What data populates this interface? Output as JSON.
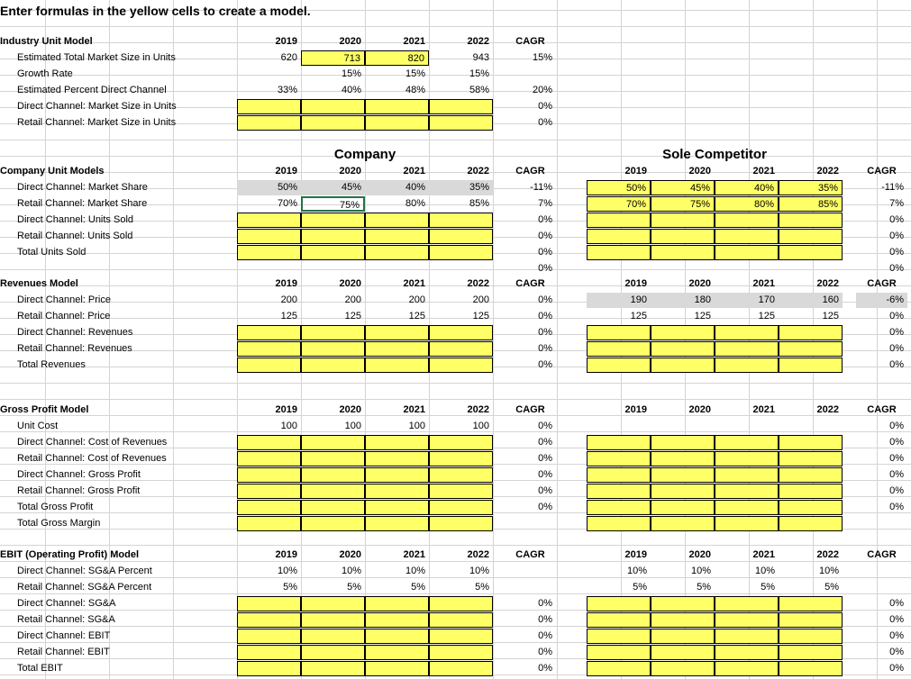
{
  "title": "Enter formulas in the yellow cells to create a model.",
  "header_years": [
    "2019",
    "2020",
    "2021",
    "2022"
  ],
  "cagr_label": "CAGR",
  "company_label": "Company",
  "competitor_label": "Sole Competitor",
  "industry": {
    "title": "Industry Unit Model",
    "rows": [
      {
        "label": "Estimated Total Market Size in Units",
        "vals": [
          "620",
          "713",
          "820",
          "943"
        ],
        "cagr": "15%"
      },
      {
        "label": "Growth Rate",
        "vals": [
          "",
          "15%",
          "15%",
          "15%"
        ],
        "cagr": ""
      },
      {
        "label": "Estimated Percent Direct Channel",
        "vals": [
          "33%",
          "40%",
          "48%",
          "58%"
        ],
        "cagr": "20%"
      },
      {
        "label": "Direct Channel: Market Size in Units",
        "vals": [
          "",
          "",
          "",
          ""
        ],
        "cagr": "0%"
      },
      {
        "label": "Retail Channel: Market Size in Units",
        "vals": [
          "",
          "",
          "",
          ""
        ],
        "cagr": "0%"
      }
    ]
  },
  "company_units": {
    "title": "Company Unit Models",
    "rows": [
      {
        "label": "Direct Channel: Market Share",
        "vals": [
          "50%",
          "45%",
          "40%",
          "35%"
        ],
        "cagr": "-11%",
        "comp": [
          "50%",
          "45%",
          "40%",
          "35%"
        ],
        "comp_cagr": "-11%"
      },
      {
        "label": "Retail Channel: Market Share",
        "vals": [
          "70%",
          "75%",
          "80%",
          "85%"
        ],
        "cagr": "7%",
        "comp": [
          "70%",
          "75%",
          "80%",
          "85%"
        ],
        "comp_cagr": "7%"
      },
      {
        "label": "Direct Channel: Units Sold",
        "vals": [
          "",
          "",
          "",
          ""
        ],
        "cagr": "0%",
        "comp": [
          "",
          "",
          "",
          ""
        ],
        "comp_cagr": "0%"
      },
      {
        "label": "Retail Channel: Units Sold",
        "vals": [
          "",
          "",
          "",
          ""
        ],
        "cagr": "0%",
        "comp": [
          "",
          "",
          "",
          ""
        ],
        "comp_cagr": "0%"
      },
      {
        "label": "Total Units Sold",
        "vals": [
          "",
          "",
          "",
          ""
        ],
        "cagr": "0%",
        "comp": [
          "",
          "",
          "",
          ""
        ],
        "comp_cagr": "0%"
      }
    ],
    "extra_cagr": "0%",
    "extra_comp_cagr": "0%"
  },
  "revenues": {
    "title": "Revenues Model",
    "rows": [
      {
        "label": "Direct Channel: Price",
        "vals": [
          "200",
          "200",
          "200",
          "200"
        ],
        "cagr": "0%",
        "comp": [
          "190",
          "180",
          "170",
          "160"
        ],
        "comp_cagr": "-6%"
      },
      {
        "label": "Retail Channel: Price",
        "vals": [
          "125",
          "125",
          "125",
          "125"
        ],
        "cagr": "0%",
        "comp": [
          "125",
          "125",
          "125",
          "125"
        ],
        "comp_cagr": "0%"
      },
      {
        "label": "Direct Channel: Revenues",
        "vals": [
          "",
          "",
          "",
          ""
        ],
        "cagr": "0%",
        "comp": [
          "",
          "",
          "",
          ""
        ],
        "comp_cagr": "0%"
      },
      {
        "label": "Retail Channel: Revenues",
        "vals": [
          "",
          "",
          "",
          ""
        ],
        "cagr": "0%",
        "comp": [
          "",
          "",
          "",
          ""
        ],
        "comp_cagr": "0%"
      },
      {
        "label": "Total Revenues",
        "vals": [
          "",
          "",
          "",
          ""
        ],
        "cagr": "0%",
        "comp": [
          "",
          "",
          "",
          ""
        ],
        "comp_cagr": "0%"
      }
    ]
  },
  "gross_profit": {
    "title": "Gross Profit Model",
    "rows": [
      {
        "label": "Unit Cost",
        "vals": [
          "100",
          "100",
          "100",
          "100"
        ],
        "cagr": "0%",
        "comp_cagr": "0%"
      },
      {
        "label": "Direct Channel: Cost of Revenues",
        "vals": [
          "",
          "",
          "",
          ""
        ],
        "cagr": "0%",
        "comp_cagr": "0%"
      },
      {
        "label": "Retail Channel: Cost of Revenues",
        "vals": [
          "",
          "",
          "",
          ""
        ],
        "cagr": "0%",
        "comp_cagr": "0%"
      },
      {
        "label": "Direct Channel: Gross Profit",
        "vals": [
          "",
          "",
          "",
          ""
        ],
        "cagr": "0%",
        "comp_cagr": "0%"
      },
      {
        "label": "Retail Channel: Gross Profit",
        "vals": [
          "",
          "",
          "",
          ""
        ],
        "cagr": "0%",
        "comp_cagr": "0%"
      },
      {
        "label": "Total Gross Profit",
        "vals": [
          "",
          "",
          "",
          ""
        ],
        "cagr": "0%",
        "comp_cagr": "0%"
      },
      {
        "label": "Total Gross Margin",
        "vals": [
          "",
          "",
          "",
          ""
        ],
        "cagr": "",
        "comp_cagr": ""
      }
    ]
  },
  "ebit": {
    "title": "EBIT (Operating Profit) Model",
    "rows": [
      {
        "label": "Direct Channel: SG&A Percent",
        "vals": [
          "10%",
          "10%",
          "10%",
          "10%"
        ],
        "cagr": "",
        "comp": [
          "10%",
          "10%",
          "10%",
          "10%"
        ],
        "comp_cagr": ""
      },
      {
        "label": "Retail Channel: SG&A Percent",
        "vals": [
          "5%",
          "5%",
          "5%",
          "5%"
        ],
        "cagr": "",
        "comp": [
          "5%",
          "5%",
          "5%",
          "5%"
        ],
        "comp_cagr": ""
      },
      {
        "label": "Direct Channel: SG&A",
        "vals": [
          "",
          "",
          "",
          ""
        ],
        "cagr": "0%",
        "comp": [
          "",
          "",
          "",
          ""
        ],
        "comp_cagr": "0%"
      },
      {
        "label": "Retail Channel: SG&A",
        "vals": [
          "",
          "",
          "",
          ""
        ],
        "cagr": "0%",
        "comp": [
          "",
          "",
          "",
          ""
        ],
        "comp_cagr": "0%"
      },
      {
        "label": "Direct Channel: EBIT",
        "vals": [
          "",
          "",
          "",
          ""
        ],
        "cagr": "0%",
        "comp": [
          "",
          "",
          "",
          ""
        ],
        "comp_cagr": "0%"
      },
      {
        "label": "Retail Channel: EBIT",
        "vals": [
          "",
          "",
          "",
          ""
        ],
        "cagr": "0%",
        "comp": [
          "",
          "",
          "",
          ""
        ],
        "comp_cagr": "0%"
      },
      {
        "label": "Total EBIT",
        "vals": [
          "",
          "",
          "",
          ""
        ],
        "cagr": "0%",
        "comp": [
          "",
          "",
          "",
          ""
        ],
        "comp_cagr": "0%"
      }
    ]
  },
  "colors": {
    "yellow": "#ffff66",
    "gray": "#d9d9d9",
    "grid": "#d4d4d4",
    "selection": "#217346"
  }
}
